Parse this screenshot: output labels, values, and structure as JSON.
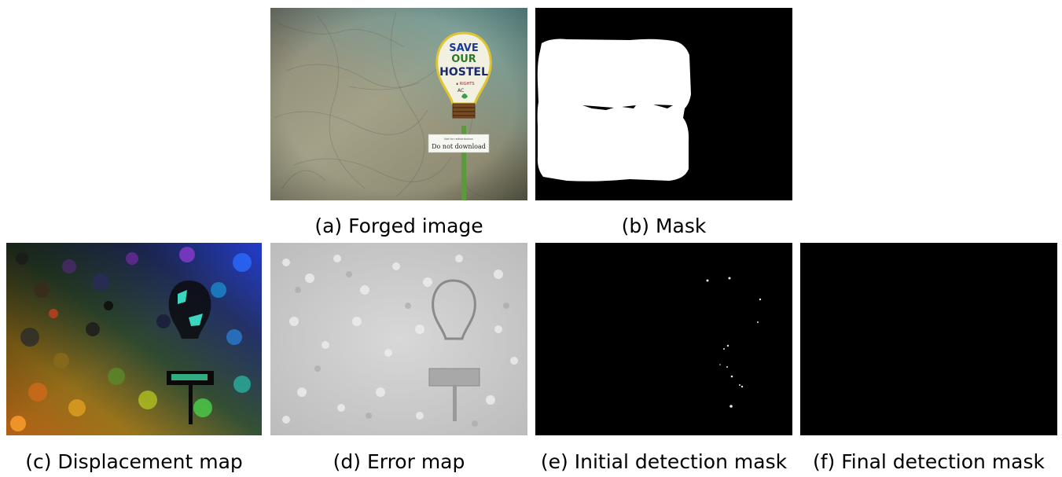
{
  "figure": {
    "panels": [
      {
        "id": "a",
        "caption": "(a) Forged image"
      },
      {
        "id": "b",
        "caption": "(b) Mask"
      },
      {
        "id": "c",
        "caption": "(c) Displacement map"
      },
      {
        "id": "d",
        "caption": "(d) Error map"
      },
      {
        "id": "e",
        "caption": "(e) Initial detection mask"
      },
      {
        "id": "f",
        "caption": "(f) Final detection mask"
      }
    ],
    "forged_image": {
      "sign_lines": [
        "SAVE",
        "OUR",
        "HOSTEL"
      ],
      "notice_small": "Not for redistribution",
      "notice_large": "Do not download",
      "dots_text": "∎ RIGHTS",
      "bottom_text": "AC"
    }
  }
}
